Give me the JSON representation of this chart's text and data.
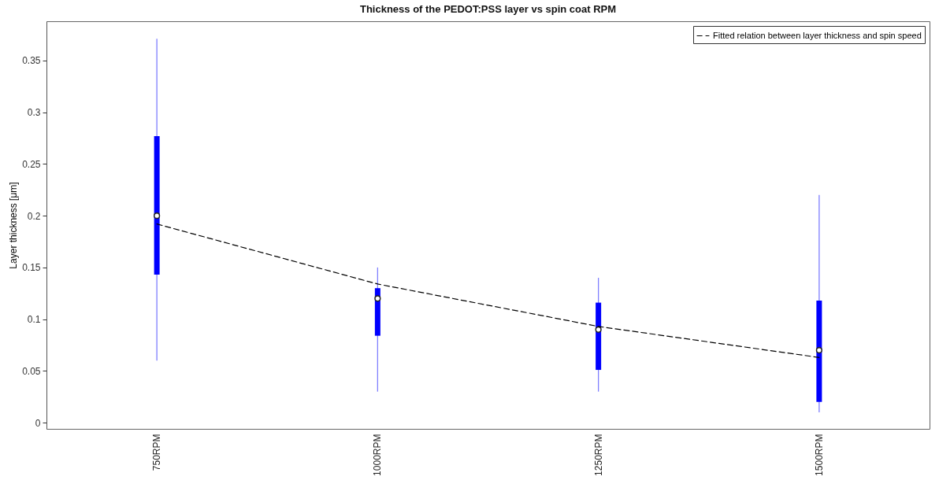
{
  "chart_data": {
    "type": "box",
    "title": "Thickness of the PEDOT:PSS layer vs spin coat RPM",
    "ylabel": "Layer thickness [μm]",
    "categories": [
      "750RPM",
      "1000RPM",
      "1250RPM",
      "1500RPM"
    ],
    "boxes": [
      {
        "low": 0.06,
        "q1": 0.143,
        "median": 0.2,
        "q3": 0.277,
        "high": 0.371
      },
      {
        "low": 0.03,
        "q1": 0.084,
        "median": 0.12,
        "q3": 0.13,
        "high": 0.15
      },
      {
        "low": 0.03,
        "q1": 0.051,
        "median": 0.09,
        "q3": 0.116,
        "high": 0.14
      },
      {
        "low": 0.01,
        "q1": 0.02,
        "median": 0.07,
        "q3": 0.118,
        "high": 0.22
      }
    ],
    "series": [
      {
        "type": "line",
        "name": "Fitted relation between layer thickness and spin speed",
        "color": "#000000",
        "line_style": "dashed",
        "marker": "none",
        "x": [
          "750RPM",
          "1000RPM",
          "1250RPM",
          "1500RPM"
        ],
        "values": [
          0.192,
          0.134,
          0.093,
          0.063
        ]
      }
    ],
    "color": "#0000ff",
    "ylim": [
      -0.006,
      0.388
    ],
    "yticks": [
      0,
      0.05,
      0.1,
      0.15,
      0.2,
      0.25,
      0.3,
      0.35
    ],
    "grid": false,
    "legend": "top right"
  }
}
